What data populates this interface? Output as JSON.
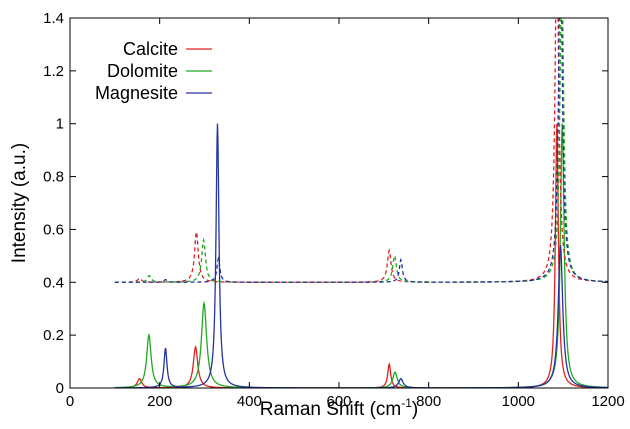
{
  "chart_data": {
    "type": "line",
    "xlabel": "Raman Shift (cm",
    "xlabel_sup": "-1",
    "xlabel_close": ")",
    "ylabel": "Intensity (a.u.)",
    "xlim": [
      0,
      1200
    ],
    "ylim": [
      0,
      1.4
    ],
    "xticks": [
      0,
      200,
      400,
      600,
      800,
      1000,
      1200
    ],
    "yticks": [
      0,
      0.2,
      0.4,
      0.6,
      0.8,
      1,
      1.2,
      1.4
    ],
    "ytick_labels": [
      "0",
      "0.2",
      "0.4",
      "0.6",
      "0.8",
      "1",
      "1.2",
      "1.4"
    ],
    "grid": false,
    "legend_position": "top-left",
    "colors": {
      "Calcite": "#e02020",
      "Dolomite": "#22a822",
      "Magnesite": "#2433a0"
    },
    "series": [
      {
        "name": "Calcite",
        "style": "solid",
        "baseline": 0,
        "peaks": [
          [
            155,
            0.035,
            6
          ],
          [
            280,
            0.155,
            6
          ],
          [
            712,
            0.09,
            4
          ],
          [
            1086,
            1.0,
            4
          ]
        ]
      },
      {
        "name": "Dolomite",
        "style": "solid",
        "baseline": 0,
        "peaks": [
          [
            176,
            0.2,
            6
          ],
          [
            299,
            0.32,
            7
          ],
          [
            725,
            0.06,
            6
          ],
          [
            1098,
            1.0,
            5
          ]
        ]
      },
      {
        "name": "Magnesite",
        "style": "solid",
        "baseline": 0,
        "peaks": [
          [
            213,
            0.15,
            4
          ],
          [
            329,
            1.0,
            4
          ],
          [
            738,
            0.035,
            6
          ],
          [
            1094,
            0.54,
            6
          ]
        ]
      },
      {
        "name": "Calcite",
        "style": "dashed",
        "baseline": 0.4,
        "peaks": [
          [
            155,
            0.015,
            5
          ],
          [
            282,
            0.19,
            5
          ],
          [
            712,
            0.12,
            5
          ],
          [
            1086,
            1.3,
            5
          ]
        ]
      },
      {
        "name": "Dolomite",
        "style": "dashed",
        "baseline": 0.4,
        "peaks": [
          [
            177,
            0.025,
            5
          ],
          [
            298,
            0.16,
            5
          ],
          [
            724,
            0.1,
            5
          ],
          [
            1097,
            1.2,
            5
          ]
        ]
      },
      {
        "name": "Magnesite",
        "style": "dashed",
        "baseline": 0.4,
        "peaks": [
          [
            213,
            0.01,
            4
          ],
          [
            331,
            0.09,
            4
          ],
          [
            738,
            0.085,
            4
          ],
          [
            1094,
            1.3,
            5
          ]
        ]
      }
    ],
    "legend": [
      "Calcite",
      "Dolomite",
      "Magnesite"
    ]
  }
}
